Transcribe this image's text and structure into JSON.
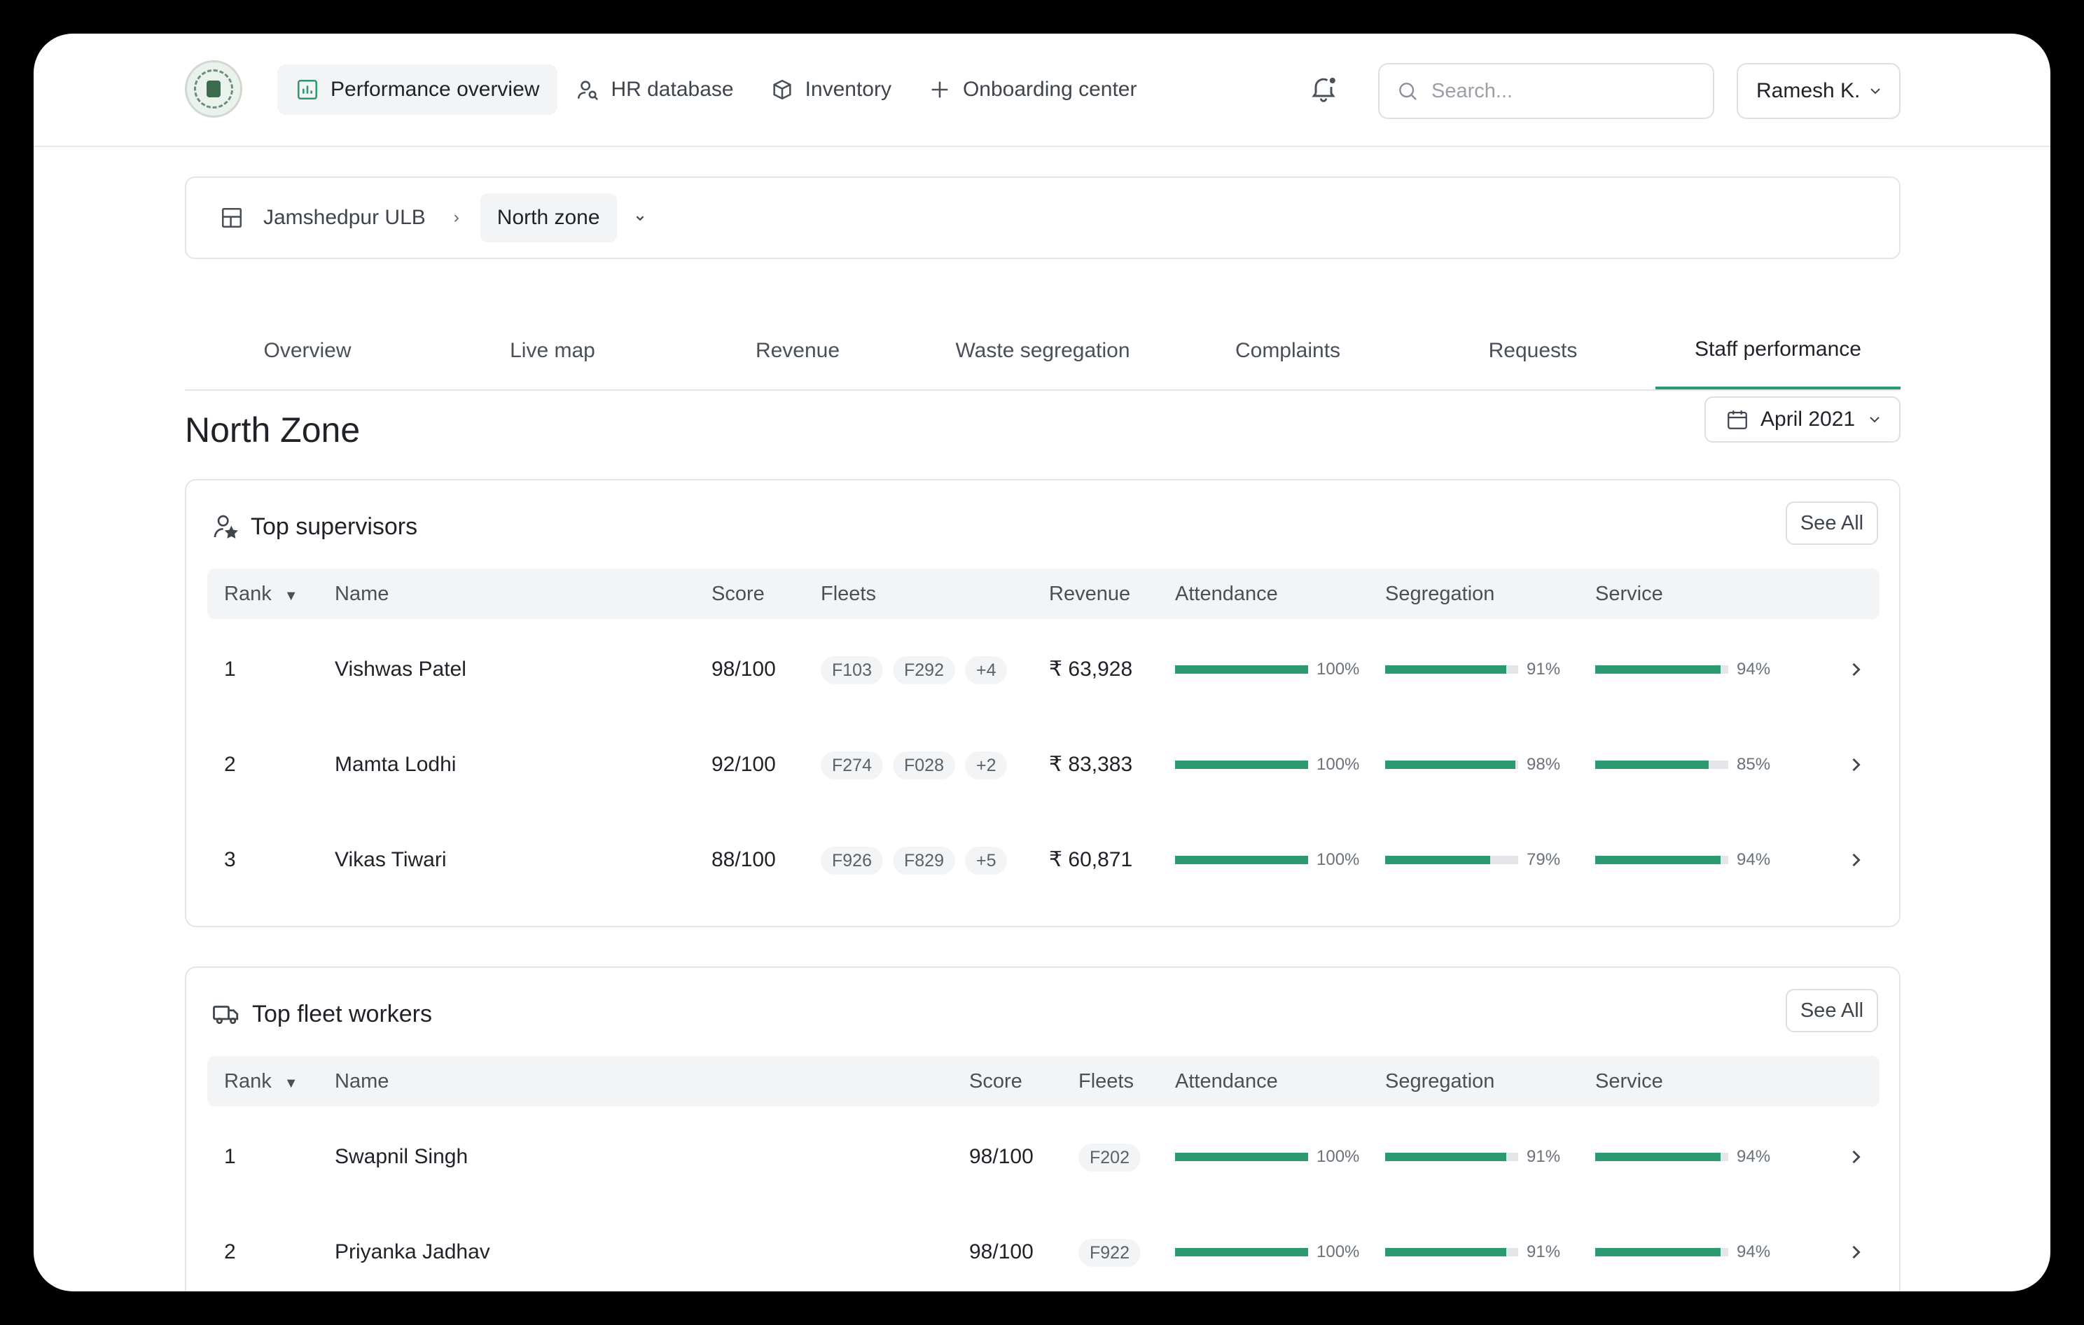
{
  "nav": {
    "items": [
      {
        "label": "Performance overview",
        "icon": "bar-chart-icon",
        "active": true
      },
      {
        "label": "HR database",
        "icon": "person-search-icon",
        "active": false
      },
      {
        "label": "Inventory",
        "icon": "box-icon",
        "active": false
      },
      {
        "label": "Onboarding center",
        "icon": "plus-icon",
        "active": false
      }
    ]
  },
  "search": {
    "placeholder": "Search..."
  },
  "user": {
    "name": "Ramesh K."
  },
  "breadcrumb": {
    "root": "Jamshedpur ULB",
    "current": "North zone"
  },
  "tabs": [
    "Overview",
    "Live map",
    "Revenue",
    "Waste segregation",
    "Complaints",
    "Requests",
    "Staff performance"
  ],
  "active_tab": "Staff performance",
  "page": {
    "title": "North Zone",
    "month": "April 2021"
  },
  "supervisors": {
    "title": "Top supervisors",
    "see_all": "See All",
    "columns": {
      "rank": "Rank",
      "name": "Name",
      "score": "Score",
      "fleets": "Fleets",
      "revenue": "Revenue",
      "attendance": "Attendance",
      "segregation": "Segregation",
      "service": "Service"
    },
    "rows": [
      {
        "rank": "1",
        "name": "Vishwas Patel",
        "score": "98/100",
        "fleets": [
          "F103",
          "F292",
          "+4"
        ],
        "revenue": "₹ 63,928",
        "attendance": "100%",
        "segregation": "91%",
        "service": "94%"
      },
      {
        "rank": "2",
        "name": "Mamta Lodhi",
        "score": "92/100",
        "fleets": [
          "F274",
          "F028",
          "+2"
        ],
        "revenue": "₹ 83,383",
        "attendance": "100%",
        "segregation": "98%",
        "service": "85%"
      },
      {
        "rank": "3",
        "name": "Vikas Tiwari",
        "score": "88/100",
        "fleets": [
          "F926",
          "F829",
          "+5"
        ],
        "revenue": "₹ 60,871",
        "attendance": "100%",
        "segregation": "79%",
        "service": "94%"
      }
    ]
  },
  "fleet_workers": {
    "title": "Top fleet workers",
    "see_all": "See All",
    "columns": {
      "rank": "Rank",
      "name": "Name",
      "score": "Score",
      "fleets": "Fleets",
      "attendance": "Attendance",
      "segregation": "Segregation",
      "service": "Service"
    },
    "rows": [
      {
        "rank": "1",
        "name": "Swapnil Singh",
        "score": "98/100",
        "fleets": [
          "F202"
        ],
        "attendance": "100%",
        "segregation": "91%",
        "service": "94%"
      },
      {
        "rank": "2",
        "name": "Priyanka Jadhav",
        "score": "98/100",
        "fleets": [
          "F922"
        ],
        "attendance": "100%",
        "segregation": "91%",
        "service": "94%"
      }
    ]
  },
  "colors": {
    "accent": "#2b9a70",
    "bar_track": "#e4e6e9"
  }
}
